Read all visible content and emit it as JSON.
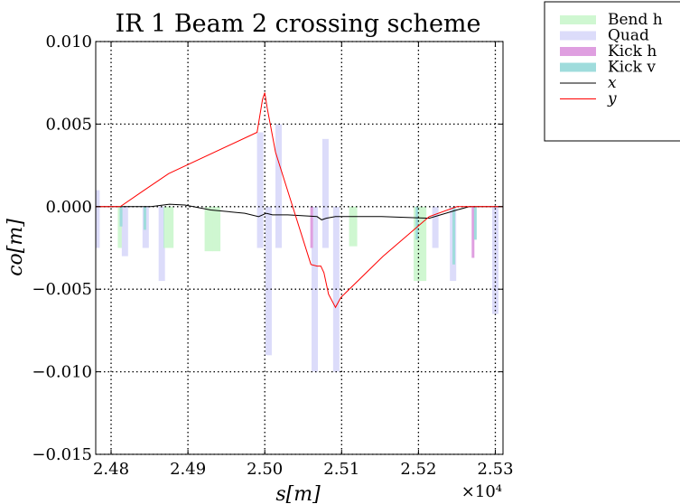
{
  "chart_data": {
    "type": "bar",
    "title": "IR 1 Beam 2 crossing scheme",
    "xlabel": "s[m]",
    "ylabel": "co[m]",
    "x_multiplier": "×10⁴",
    "xlim": [
      24780,
      25310
    ],
    "ylim": [
      -0.015,
      0.01
    ],
    "xticks": [
      2.48,
      2.49,
      2.5,
      2.51,
      2.52,
      2.53
    ],
    "yticks": [
      -0.015,
      -0.01,
      -0.005,
      0.0,
      0.005,
      0.01
    ],
    "xtick_labels": [
      "2.48",
      "2.49",
      "2.50",
      "2.51",
      "2.52",
      "2.53"
    ],
    "ytick_labels": [
      "−0.015",
      "−0.010",
      "−0.005",
      "0.000",
      "0.005",
      "0.010"
    ],
    "grid": true,
    "legend_position": "outside-top-right",
    "elements": [
      {
        "kind": "quad",
        "s": 24781,
        "value": 0.001
      },
      {
        "kind": "quad",
        "s": 24781,
        "value": -0.0025
      },
      {
        "kind": "bend",
        "s": 24814,
        "value": -0.0025
      },
      {
        "kind": "quad",
        "s": 24818,
        "value": -0.003
      },
      {
        "kind": "kickv",
        "s": 24813,
        "value": -0.0012
      },
      {
        "kind": "quad",
        "s": 24845,
        "value": -0.0025
      },
      {
        "kind": "kickv",
        "s": 24844,
        "value": -0.0014
      },
      {
        "kind": "kickh",
        "s": 24864,
        "value": -0.0014
      },
      {
        "kind": "quad",
        "s": 24866,
        "value": -0.0045
      },
      {
        "kind": "kickv",
        "s": 24870,
        "value": -0.0025
      },
      {
        "kind": "bend",
        "s": 24874,
        "value": -0.0025
      },
      {
        "kind": "bend",
        "s": 24876,
        "value": -0.0025
      },
      {
        "kind": "bend",
        "s": 24927,
        "value": -0.0027
      },
      {
        "kind": "bend",
        "s": 24937,
        "value": -0.0027
      },
      {
        "kind": "quad",
        "s": 24994,
        "value": 0.0045
      },
      {
        "kind": "quad",
        "s": 24994,
        "value": -0.0025
      },
      {
        "kind": "quad",
        "s": 25005,
        "value": -0.009
      },
      {
        "kind": "quad",
        "s": 25018,
        "value": 0.005
      },
      {
        "kind": "quad",
        "s": 25018,
        "value": -0.0025
      },
      {
        "kind": "quad",
        "s": 25065,
        "value": -0.01
      },
      {
        "kind": "kickh",
        "s": 25061,
        "value": -0.0025
      },
      {
        "kind": "quad",
        "s": 25079,
        "value": 0.0041
      },
      {
        "kind": "quad",
        "s": 25079,
        "value": -0.0025
      },
      {
        "kind": "quad",
        "s": 25093,
        "value": -0.01
      },
      {
        "kind": "bend",
        "s": 25115,
        "value": -0.0024
      },
      {
        "kind": "bend",
        "s": 25199,
        "value": -0.0045
      },
      {
        "kind": "bend",
        "s": 25205,
        "value": -0.0045
      },
      {
        "kind": "kickv",
        "s": 25198,
        "value": -0.002
      },
      {
        "kind": "quad",
        "s": 25222,
        "value": -0.0025
      },
      {
        "kind": "quad",
        "s": 25245,
        "value": -0.0045
      },
      {
        "kind": "kickv",
        "s": 25246,
        "value": -0.0035
      },
      {
        "kind": "kickh",
        "s": 25271,
        "value": -0.0031
      },
      {
        "kind": "kickv",
        "s": 25274,
        "value": -0.002
      },
      {
        "kind": "quad",
        "s": 25300,
        "value": -0.0065
      }
    ],
    "series": [
      {
        "name": "x",
        "color": "#000000",
        "x": [
          24780,
          24812,
          24852,
          24876,
          24896,
          24930,
          24974,
          24992,
          25002,
          25010,
          25030,
          25068,
          25074,
          25080,
          25092,
          25152,
          25214,
          25250,
          25266,
          25310
        ],
        "y": [
          0,
          0,
          0,
          0.00015,
          0.0001,
          -0.0002,
          -0.0004,
          -0.0006,
          -0.0004,
          -0.0005,
          -0.0005,
          -0.0006,
          -0.0008,
          -0.0007,
          -0.0006,
          -0.0006,
          -0.0007,
          -0.0002,
          0,
          0
        ]
      },
      {
        "name": "y",
        "color": "#ff0000",
        "x": [
          24780,
          24812,
          24840,
          24875,
          24990,
          24997,
          25000,
          25003,
          25014,
          25060,
          25068,
          25073,
          25077,
          25083,
          25092,
          25099,
          25154,
          25214,
          25250,
          25266,
          25310
        ],
        "y": [
          0,
          0,
          0.0009,
          0.002,
          0.0045,
          0.0065,
          0.0069,
          0.006,
          0.0033,
          -0.0035,
          -0.0036,
          -0.0036,
          -0.004,
          -0.0053,
          -0.0061,
          -0.0055,
          -0.003,
          -0.0006,
          0,
          0,
          0
        ]
      }
    ],
    "legend": [
      {
        "label": "Bend h",
        "swatch": "bar",
        "color": "#cff7d1"
      },
      {
        "label": "Quad",
        "swatch": "bar",
        "color": "#dcdcfa"
      },
      {
        "label": "Kick h",
        "swatch": "bar",
        "color": "#df9fe0"
      },
      {
        "label": "Kick v",
        "swatch": "bar",
        "color": "#9fdcdc"
      },
      {
        "label": "x",
        "swatch": "line",
        "color": "#000000"
      },
      {
        "label": "y",
        "swatch": "line",
        "color": "#ff0000"
      }
    ],
    "element_colors": {
      "bend": "#cff7d1",
      "quad": "#dcdcfa",
      "kickh": "#df9fe0",
      "kickv": "#9fdcdc"
    }
  }
}
